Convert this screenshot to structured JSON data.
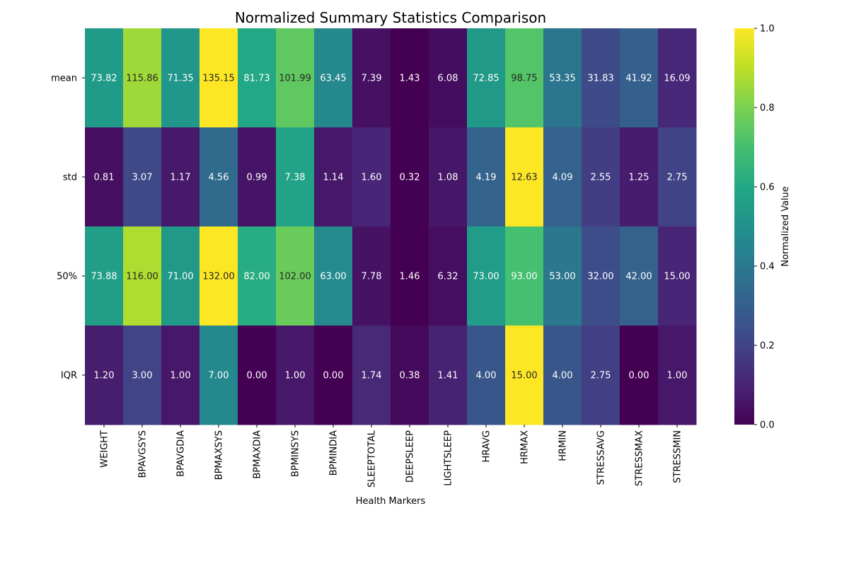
{
  "chart_data": {
    "type": "heatmap",
    "title": "Normalized Summary Statistics Comparison",
    "xlabel": "Health Markers",
    "ylabel": "",
    "columns": [
      "WEIGHT",
      "BPAVGSYS",
      "BPAVGDIA",
      "BPMAXSYS",
      "BPMAXDIA",
      "BPMINSYS",
      "BPMINDIA",
      "SLEEPTOTAL",
      "DEEPSLEEP",
      "LIGHTSLEEP",
      "HRAVG",
      "HRMAX",
      "HRMIN",
      "STRESSAVG",
      "STRESSMAX",
      "STRESSMIN"
    ],
    "rows": [
      "mean",
      "std",
      "50%",
      "IQR"
    ],
    "values": [
      [
        73.82,
        115.86,
        71.35,
        135.15,
        81.73,
        101.99,
        63.45,
        7.39,
        1.43,
        6.08,
        72.85,
        98.75,
        53.35,
        31.83,
        41.92,
        16.09
      ],
      [
        0.81,
        3.07,
        1.17,
        4.56,
        0.99,
        7.38,
        1.14,
        1.6,
        0.32,
        1.08,
        4.19,
        12.63,
        4.09,
        2.55,
        1.25,
        2.75
      ],
      [
        73.88,
        116.0,
        71.0,
        132.0,
        82.0,
        102.0,
        63.0,
        7.78,
        1.46,
        6.32,
        73.0,
        93.0,
        53.0,
        32.0,
        42.0,
        15.0
      ],
      [
        1.2,
        3.0,
        1.0,
        7.0,
        0.0,
        1.0,
        0.0,
        1.74,
        0.38,
        1.41,
        4.0,
        15.0,
        4.0,
        2.75,
        0.0,
        1.0
      ]
    ],
    "value_format": "2 decimals",
    "normalization": "min-max per row",
    "colormap": "viridis",
    "colorbar": {
      "label": "Normalized Value",
      "range": [
        0,
        1
      ],
      "ticks": [
        "0.0",
        "0.2",
        "0.4",
        "0.6",
        "0.8",
        "1.0"
      ]
    }
  }
}
